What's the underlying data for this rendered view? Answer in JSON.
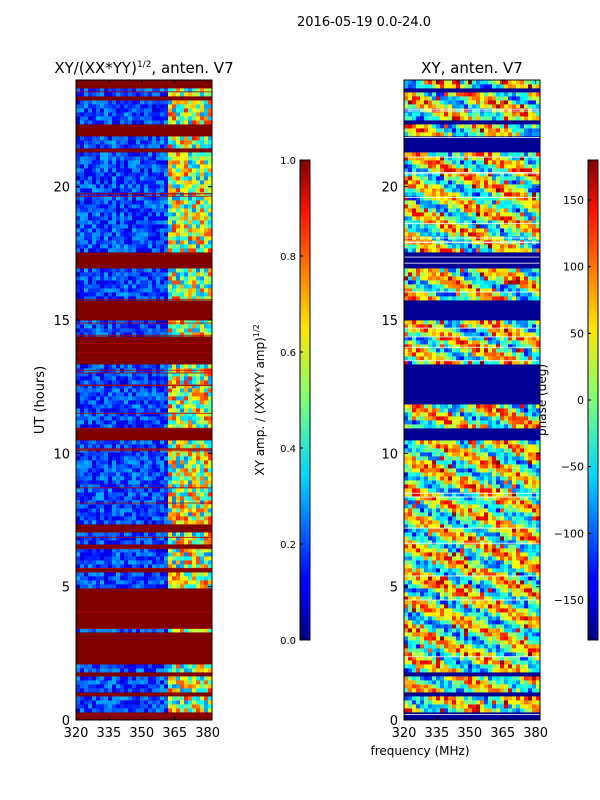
{
  "page": {
    "suptitle": "2016-05-19 0.0-24.0",
    "xlabel": "frequency (MHz)"
  },
  "chart_data": [
    {
      "type": "heatmap",
      "title_main": "XY/(XX*YY)",
      "title_sup": "1/2",
      "title_tail": ", anten. V7",
      "xlabel": "",
      "ylabel": "UT (hours)",
      "xlim": [
        320,
        382
      ],
      "ylim": [
        0,
        24
      ],
      "xticks": [
        320,
        335,
        350,
        365,
        380
      ],
      "yticks": [
        0,
        5,
        10,
        15,
        20
      ],
      "colormap": "jet",
      "band_edge_mhz": 362,
      "flagged_hours": [
        [
          0.0,
          0.25
        ],
        [
          0.9,
          1.1
        ],
        [
          1.6,
          1.8
        ],
        [
          2.1,
          3.3
        ],
        [
          3.4,
          4.0
        ],
        [
          4.1,
          4.9
        ],
        [
          5.5,
          5.7
        ],
        [
          6.4,
          6.6
        ],
        [
          7.0,
          7.3
        ],
        [
          10.45,
          10.9
        ],
        [
          13.3,
          14.35
        ],
        [
          15.0,
          15.7
        ],
        [
          16.9,
          17.6
        ],
        [
          21.3,
          21.5
        ],
        [
          21.85,
          22.3
        ],
        [
          23.2,
          23.45
        ],
        [
          23.75,
          24.0
        ]
      ],
      "colorbar": {
        "label_main": "XY amp. / (XX*YY amp)",
        "label_sup": "1/2",
        "ticks": [
          "0.0",
          "0.2",
          "0.4",
          "0.6",
          "0.8",
          "1.0"
        ],
        "tick_values": [
          0,
          0.2,
          0.4,
          0.6,
          0.8,
          1.0
        ],
        "range": [
          0,
          1
        ]
      }
    },
    {
      "type": "heatmap",
      "title": "XY, anten. V7",
      "xlabel": "",
      "ylabel": "",
      "xlim": [
        320,
        382
      ],
      "ylim": [
        0,
        24
      ],
      "xticks": [
        320,
        335,
        350,
        365,
        380
      ],
      "yticks": [
        0,
        5,
        10,
        15,
        20
      ],
      "colormap": "jet",
      "flagged_hours": [
        [
          0.0,
          0.25
        ],
        [
          0.9,
          1.1
        ],
        [
          1.6,
          1.8
        ],
        [
          10.45,
          10.9
        ],
        [
          11.8,
          13.3
        ],
        [
          15.0,
          15.7
        ],
        [
          16.9,
          17.6
        ],
        [
          21.3,
          21.85
        ],
        [
          22.3,
          22.5
        ],
        [
          23.5,
          23.7
        ]
      ],
      "colorbar": {
        "label": "phase (deg)",
        "ticks": [
          "−150",
          "−100",
          "−50",
          "0",
          "50",
          "100",
          "150"
        ],
        "tick_values": [
          -150,
          -100,
          -50,
          0,
          50,
          100,
          150
        ],
        "range": [
          -180,
          180
        ]
      }
    }
  ]
}
